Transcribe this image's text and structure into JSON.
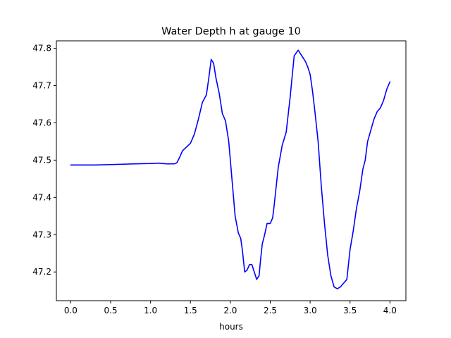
{
  "chart_data": {
    "type": "line",
    "title": "Water Depth h at gauge 10",
    "xlabel": "hours",
    "ylabel": "",
    "xlim": [
      -0.18,
      4.2
    ],
    "ylim": [
      47.123,
      47.82
    ],
    "x_ticks": [
      0.0,
      0.5,
      1.0,
      1.5,
      2.0,
      2.5,
      3.0,
      3.5,
      4.0
    ],
    "x_tick_labels": [
      "0.0",
      "0.5",
      "1.0",
      "1.5",
      "2.0",
      "2.5",
      "3.0",
      "3.5",
      "4.0"
    ],
    "y_ticks": [
      47.2,
      47.3,
      47.4,
      47.5,
      47.6,
      47.7,
      47.8
    ],
    "y_tick_labels": [
      "47.2",
      "47.3",
      "47.4",
      "47.5",
      "47.6",
      "47.7",
      "47.8"
    ],
    "grid": false,
    "legend": "none",
    "series": [
      {
        "color": "#0000ff",
        "x": [
          0.0,
          0.3,
          0.5,
          0.8,
          1.0,
          1.1,
          1.2,
          1.3,
          1.33,
          1.37,
          1.4,
          1.45,
          1.5,
          1.55,
          1.6,
          1.65,
          1.7,
          1.73,
          1.76,
          1.79,
          1.82,
          1.86,
          1.9,
          1.94,
          1.98,
          2.02,
          2.06,
          2.1,
          2.13,
          2.15,
          2.18,
          2.21,
          2.24,
          2.27,
          2.3,
          2.33,
          2.36,
          2.38,
          2.4,
          2.43,
          2.46,
          2.5,
          2.53,
          2.55,
          2.58,
          2.6,
          2.65,
          2.7,
          2.75,
          2.8,
          2.85,
          2.88,
          2.91,
          2.94,
          2.97,
          3.0,
          3.03,
          3.06,
          3.1,
          3.14,
          3.18,
          3.22,
          3.26,
          3.3,
          3.34,
          3.38,
          3.42,
          3.46,
          3.5,
          3.54,
          3.58,
          3.62,
          3.66,
          3.69,
          3.72,
          3.76,
          3.8,
          3.84,
          3.88,
          3.92,
          3.96,
          4.0
        ],
        "values": [
          47.487,
          47.487,
          47.488,
          47.49,
          47.491,
          47.492,
          47.49,
          47.49,
          47.493,
          47.51,
          47.525,
          47.535,
          47.545,
          47.57,
          47.61,
          47.655,
          47.675,
          47.72,
          47.77,
          47.76,
          47.72,
          47.68,
          47.625,
          47.605,
          47.55,
          47.45,
          47.35,
          47.305,
          47.29,
          47.26,
          47.2,
          47.205,
          47.22,
          47.22,
          47.2,
          47.18,
          47.19,
          47.235,
          47.275,
          47.3,
          47.33,
          47.33,
          47.345,
          47.38,
          47.44,
          47.48,
          47.54,
          47.575,
          47.67,
          47.78,
          47.795,
          47.785,
          47.775,
          47.765,
          47.75,
          47.73,
          47.685,
          47.63,
          47.55,
          47.43,
          47.33,
          47.245,
          47.19,
          47.16,
          47.155,
          47.16,
          47.17,
          47.18,
          47.26,
          47.31,
          47.37,
          47.415,
          47.475,
          47.5,
          47.55,
          47.58,
          47.61,
          47.63,
          47.64,
          47.66,
          47.69,
          47.71
        ]
      }
    ]
  }
}
